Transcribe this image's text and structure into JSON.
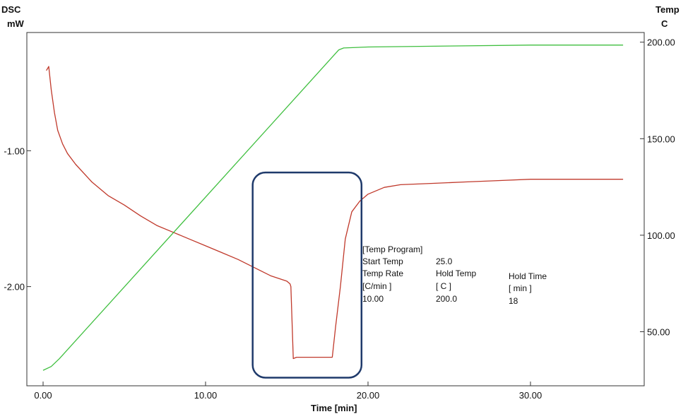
{
  "chart_data": {
    "type": "line",
    "title": "",
    "xlabel": "Time [min]",
    "xlim": [
      -1.0,
      37.0
    ],
    "x_ticks": [
      0,
      10,
      20,
      30
    ],
    "x_tick_labels": [
      "0.00",
      "10.00",
      "20.00",
      "30.00"
    ],
    "left_axis": {
      "label_line1": "DSC",
      "label_line2": "mW",
      "ylim": [
        -2.73,
        -0.13
      ],
      "ticks": [
        -1.0,
        -2.0
      ],
      "tick_labels": [
        "-1.00",
        "-2.00"
      ]
    },
    "right_axis": {
      "label_line1": "Temp",
      "label_line2": "C",
      "ylim": [
        22.0,
        205.0
      ],
      "ticks": [
        50,
        100,
        150,
        200
      ],
      "tick_labels": [
        "50.00",
        "100.00",
        "150.00",
        "200.00"
      ]
    },
    "grid": false,
    "series": [
      {
        "axis": "left",
        "color": "#c0392b",
        "x": [
          0.2,
          0.25,
          0.35,
          0.5,
          0.7,
          0.9,
          1.2,
          1.5,
          2.0,
          3.0,
          4.0,
          5.0,
          6.0,
          7.0,
          8.0,
          9.0,
          10.0,
          11.0,
          12.0,
          13.0,
          14.0,
          15.0,
          15.2,
          15.25,
          15.4,
          15.6,
          15.9,
          16.5,
          17.0,
          17.8,
          18.0,
          18.3,
          18.6,
          19.0,
          19.5,
          20.0,
          21.0,
          22.0,
          24.0,
          26.0,
          28.0,
          30.0,
          32.0,
          34.0,
          35.7
        ],
        "y": [
          -0.41,
          -0.4,
          -0.38,
          -0.55,
          -0.72,
          -0.85,
          -0.95,
          -1.02,
          -1.1,
          -1.23,
          -1.33,
          -1.4,
          -1.48,
          -1.55,
          -1.6,
          -1.65,
          -1.7,
          -1.75,
          -1.8,
          -1.86,
          -1.92,
          -1.96,
          -1.98,
          -2.0,
          -2.53,
          -2.52,
          -2.52,
          -2.52,
          -2.52,
          -2.52,
          -2.3,
          -2.0,
          -1.65,
          -1.45,
          -1.37,
          -1.32,
          -1.27,
          -1.25,
          -1.24,
          -1.23,
          -1.22,
          -1.21,
          -1.21,
          -1.21,
          -1.21
        ]
      },
      {
        "axis": "right",
        "color": "#3fbf3f",
        "x": [
          0.0,
          0.5,
          1.0,
          18.2,
          18.5,
          20.0,
          25.0,
          30.0,
          35.7
        ],
        "y": [
          30.0,
          32.0,
          36.0,
          196.0,
          197.0,
          197.5,
          198.0,
          198.5,
          198.5
        ]
      }
    ]
  },
  "temp_program": {
    "title": "[Temp Program]",
    "start_temp_label": "Start Temp",
    "start_temp_value": "25.0",
    "col1_header": "Temp Rate",
    "col2_header": "Hold Temp",
    "col3_header": "Hold Time",
    "col1_unit": "[C/min ]",
    "col2_unit": "[  C  ]",
    "col3_unit": "[  min  ]",
    "col1_value": "10.00",
    "col2_value": "200.0",
    "col3_value": "18"
  },
  "highlight_box": {
    "color": "#1f3a6b",
    "x_range": [
      12.9,
      19.6
    ],
    "y_range": [
      -2.67,
      -1.16
    ]
  }
}
